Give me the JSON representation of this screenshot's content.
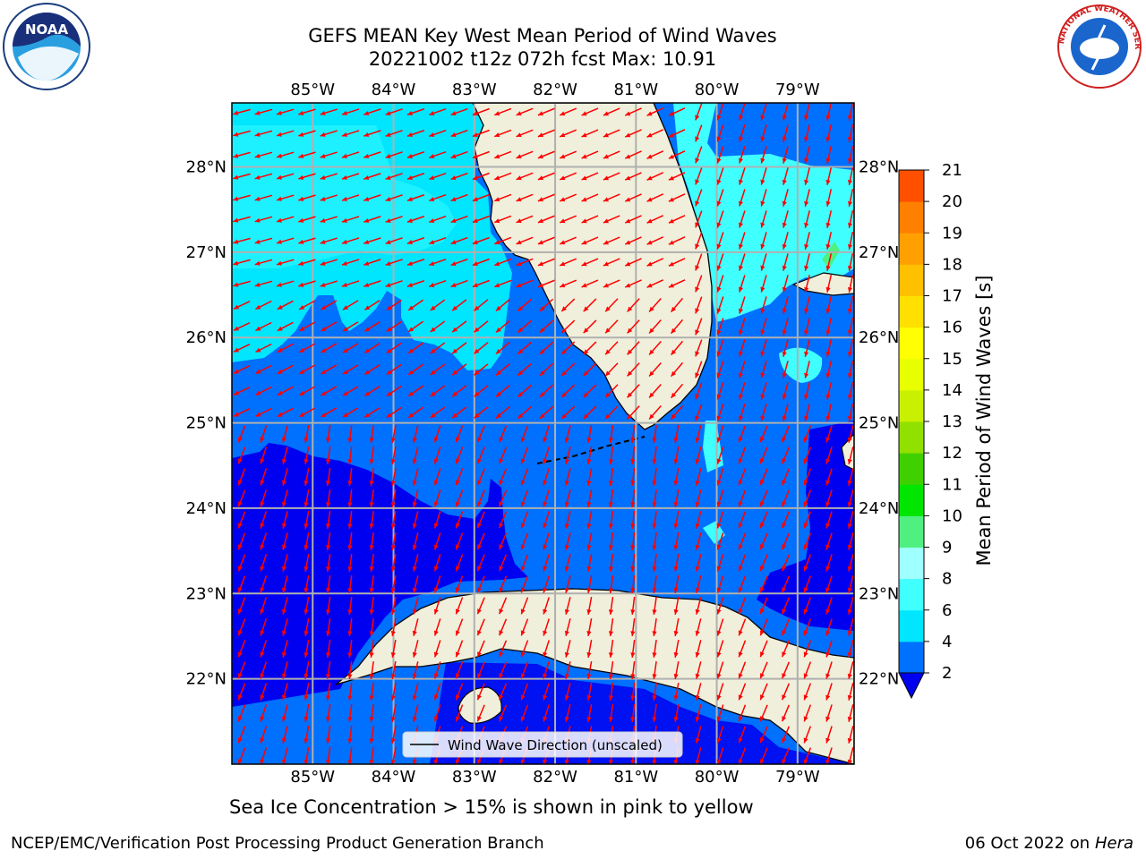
{
  "title": {
    "line1": "GEFS MEAN Key West Mean Period of Wind Waves",
    "line2": "20221002 t12z 072h fcst   Max: 10.91"
  },
  "map": {
    "lon_range": [
      -86,
      -78.3
    ],
    "lat_range": [
      21,
      28.75
    ],
    "lon_ticks": [
      "85°W",
      "84°W",
      "83°W",
      "82°W",
      "81°W",
      "80°W",
      "79°W"
    ],
    "lat_ticks": [
      "22°N",
      "23°N",
      "24°N",
      "25°N",
      "26°N",
      "27°N",
      "28°N"
    ],
    "gridlines": true,
    "legend": {
      "label": "Wind Wave Direction (unscaled)",
      "placement": "bottom-center"
    },
    "vector_color": "#ff0000",
    "land_color": "#efefdb"
  },
  "colorbar": {
    "label": "Mean Period of Wind Waves [s]",
    "ticks": [
      "2",
      "4",
      "6",
      "8",
      "9",
      "10",
      "11",
      "12",
      "13",
      "14",
      "15",
      "16",
      "17",
      "18",
      "19",
      "20",
      "21"
    ],
    "colors": [
      "#0070ff",
      "#00e6ff",
      "#40ffff",
      "#a0ffff",
      "#50f080",
      "#00e600",
      "#40d000",
      "#90e000",
      "#c8f000",
      "#e8ff00",
      "#ffff00",
      "#ffe000",
      "#ffc000",
      "#ffa000",
      "#ff8000",
      "#ff5000",
      "#ff2000",
      "#ff0000"
    ],
    "under_color": "#0000f0"
  },
  "subcaption": "Sea Ice Concentration > 15% is shown in pink to yellow",
  "footer": {
    "left": "NCEP/EMC/Verification Post Processing Product Generation Branch",
    "date": "06 Oct 2022 on",
    "host": "Hera"
  },
  "logos": {
    "left": "NOAA",
    "right": "NATIONAL WEATHER SERVICE"
  }
}
